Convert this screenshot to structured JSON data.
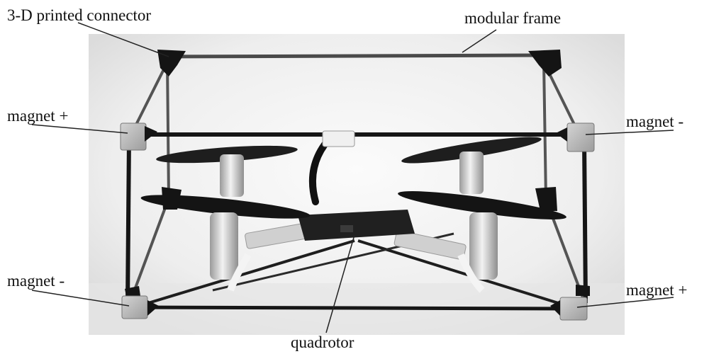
{
  "labels": {
    "connector": "3-D printed connector",
    "frame": "modular frame",
    "magnet_plus_left": "magnet +",
    "magnet_minus_right": "magnet -",
    "magnet_minus_left": "magnet -",
    "magnet_plus_right": "magnet +",
    "quadrotor": "quadrotor"
  },
  "colors": {
    "background": "#ffffff",
    "photo_backdrop": "#efefef",
    "frame_rod": "#1c1c1c",
    "connector": "#161616",
    "magnet": "#b9b9b9",
    "motor": "#d6d6d6",
    "propeller": "#1a1a1a",
    "leader_line": "#222222"
  }
}
